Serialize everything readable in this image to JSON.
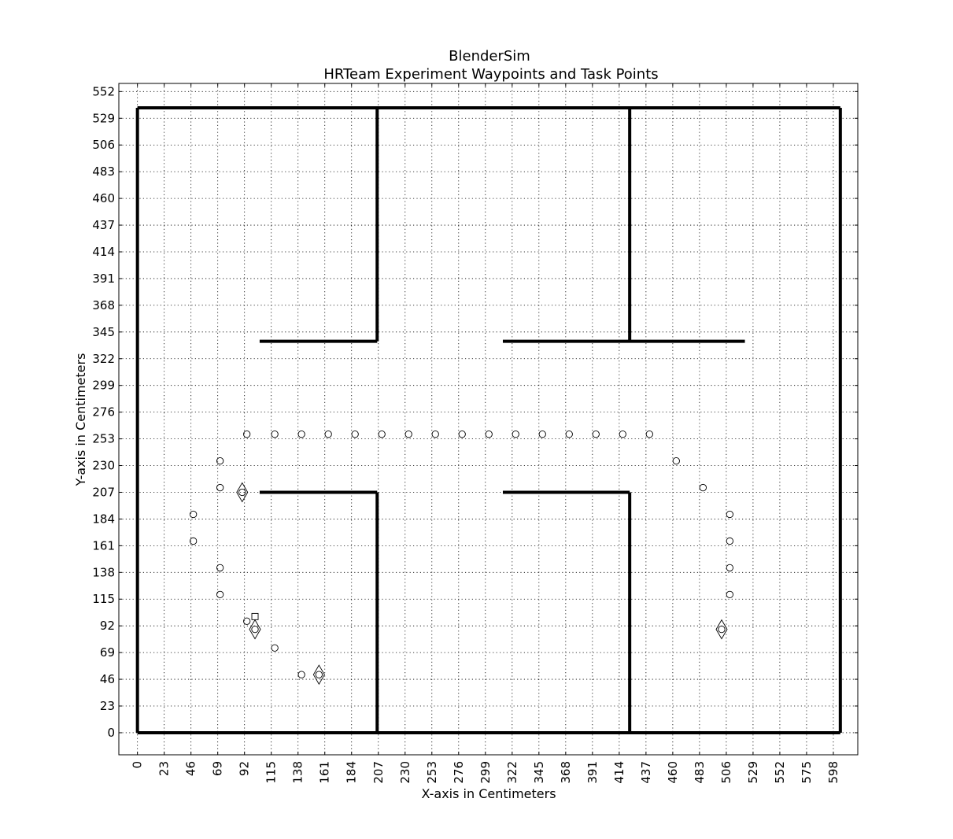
{
  "chart_data": {
    "type": "scatter",
    "title": "BlenderSim",
    "subtitle": "HRTeam Experiment Waypoints and Task Points",
    "xlabel": "X-axis in Centimeters",
    "ylabel": "Y-axis in Centimeters",
    "xlim": [
      -16,
      619
    ],
    "ylim": [
      -19,
      559
    ],
    "xticks": [
      0,
      23,
      46,
      69,
      92,
      115,
      138,
      161,
      184,
      207,
      230,
      253,
      276,
      299,
      322,
      345,
      368,
      391,
      414,
      437,
      460,
      483,
      506,
      529,
      552,
      575,
      598
    ],
    "yticks": [
      0,
      23,
      46,
      69,
      92,
      115,
      138,
      161,
      184,
      207,
      230,
      253,
      276,
      299,
      322,
      345,
      368,
      391,
      414,
      437,
      460,
      483,
      506,
      529,
      552
    ],
    "grid": true,
    "walls": [
      [
        [
          0,
          0
        ],
        [
          604,
          0
        ]
      ],
      [
        [
          0,
          538
        ],
        [
          604,
          538
        ]
      ],
      [
        [
          0,
          0
        ],
        [
          0,
          538
        ]
      ],
      [
        [
          604,
          0
        ],
        [
          604,
          538
        ]
      ],
      [
        [
          206,
          538
        ],
        [
          206,
          337
        ]
      ],
      [
        [
          206,
          337
        ],
        [
          105,
          337
        ]
      ],
      [
        [
          423,
          538
        ],
        [
          423,
          337
        ]
      ],
      [
        [
          314,
          337
        ],
        [
          522,
          337
        ]
      ],
      [
        [
          105,
          207
        ],
        [
          206,
          207
        ]
      ],
      [
        [
          206,
          207
        ],
        [
          206,
          0
        ]
      ],
      [
        [
          314,
          207
        ],
        [
          423,
          207
        ]
      ],
      [
        [
          423,
          207
        ],
        [
          423,
          0
        ]
      ]
    ],
    "waypoints": {
      "x": [
        94,
        118,
        141,
        164,
        187,
        210,
        233,
        256,
        279,
        302,
        325,
        348,
        371,
        394,
        417,
        440,
        71,
        71,
        48,
        48,
        71,
        71,
        94,
        118,
        141,
        463,
        486,
        509,
        509,
        509,
        509,
        90,
        101,
        156,
        502
      ],
      "y": [
        257,
        257,
        257,
        257,
        257,
        257,
        257,
        257,
        257,
        257,
        257,
        257,
        257,
        257,
        257,
        257,
        234,
        211,
        188,
        165,
        142,
        119,
        96,
        73,
        50,
        234,
        211,
        188,
        165,
        142,
        119,
        207,
        89,
        50,
        89
      ]
    },
    "task_points": {
      "x": [
        90,
        101,
        156,
        502
      ],
      "y": [
        207,
        89,
        50,
        89
      ]
    },
    "square_markers": {
      "x": [
        101
      ],
      "y": [
        100
      ]
    }
  }
}
